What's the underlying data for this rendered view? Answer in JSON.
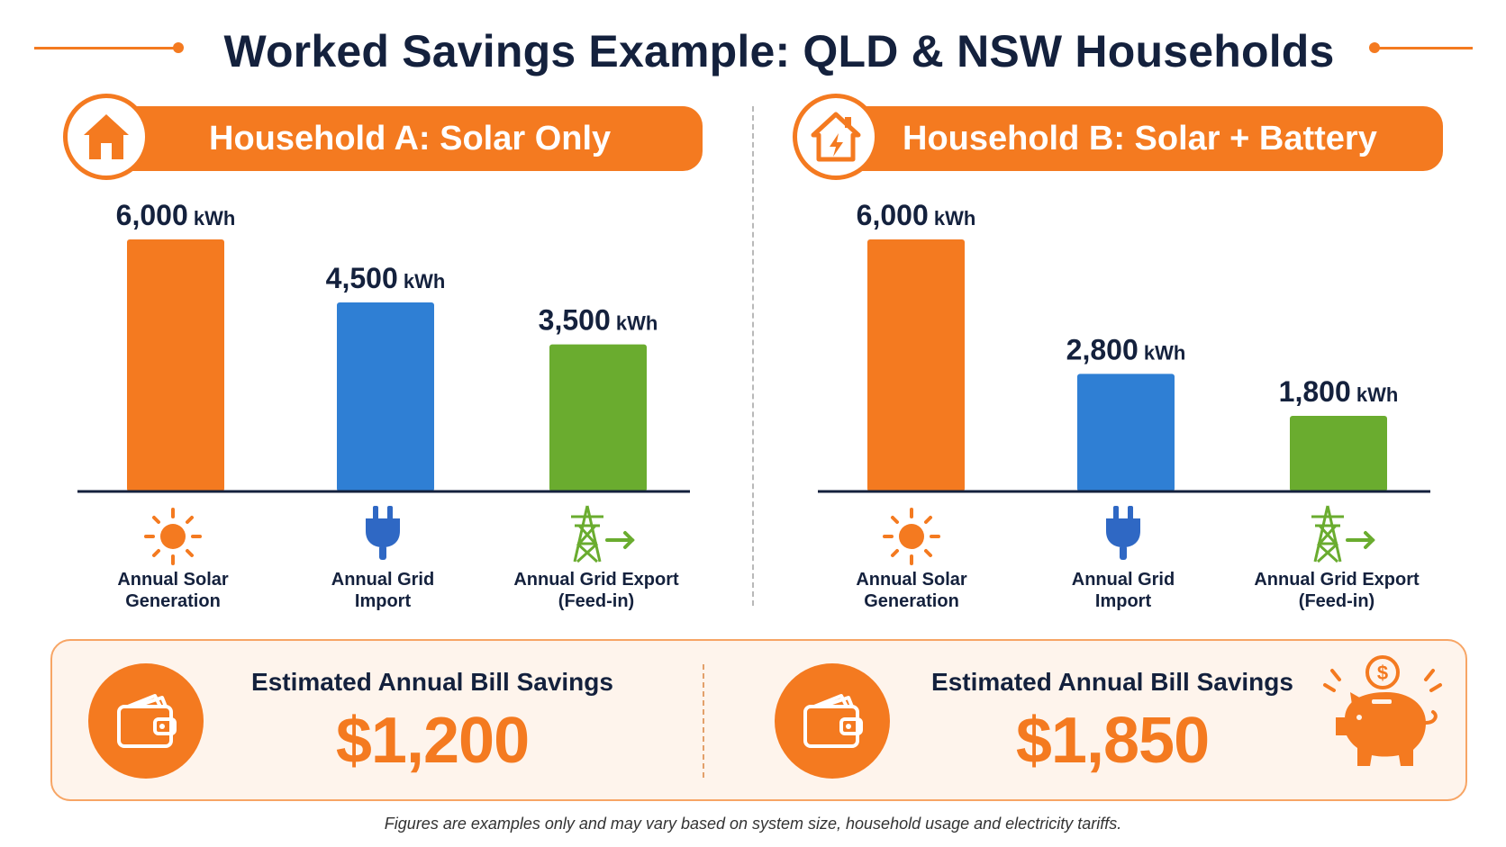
{
  "title": "Worked Savings Example: QLD & NSW Households",
  "footnote": "Figures are examples only and may vary based on system size, household usage and electricity tariffs.",
  "colors": {
    "orange": "#f47a20",
    "blue": "#2f7fd4",
    "green": "#6aac2f",
    "navy": "#14213d"
  },
  "households": [
    {
      "name": "Household A: Solar Only",
      "icon": "house-icon"
    },
    {
      "name": "Household B: Solar + Battery",
      "icon": "house-lightning-icon"
    }
  ],
  "categories": [
    {
      "label_line1": "Annual Solar",
      "label_line2": "Generation",
      "icon": "sun-icon"
    },
    {
      "label_line1": "Annual Grid",
      "label_line2": "Import",
      "icon": "plug-icon"
    },
    {
      "label_line1": "Annual Grid Export",
      "label_line2": "(Feed-in)",
      "icon": "pylon-export-icon"
    }
  ],
  "chart_data": [
    {
      "type": "bar",
      "title": "Household A: Solar Only",
      "categories": [
        "Annual Solar Generation",
        "Annual Grid Import",
        "Annual Grid Export (Feed-in)"
      ],
      "values": [
        6000,
        4500,
        3500
      ],
      "value_labels": [
        "6,000",
        "4,500",
        "3,500"
      ],
      "unit": "kWh",
      "bar_colors": [
        "#f47a20",
        "#2f7fd4",
        "#6aac2f"
      ],
      "ylim": [
        0,
        6000
      ],
      "grid": false
    },
    {
      "type": "bar",
      "title": "Household B: Solar + Battery",
      "categories": [
        "Annual Solar Generation",
        "Annual Grid Import",
        "Annual Grid Export (Feed-in)"
      ],
      "values": [
        6000,
        2800,
        1800
      ],
      "value_labels": [
        "6,000",
        "2,800",
        "1,800"
      ],
      "unit": "kWh",
      "bar_colors": [
        "#f47a20",
        "#2f7fd4",
        "#6aac2f"
      ],
      "ylim": [
        0,
        6000
      ],
      "grid": false
    }
  ],
  "savings": [
    {
      "label": "Estimated Annual Bill Savings",
      "value": "$1,200",
      "icon": "wallet-icon"
    },
    {
      "label": "Estimated Annual Bill Savings",
      "value": "$1,850",
      "icon": "wallet-icon"
    }
  ],
  "extra_icons": {
    "piggy": "piggy-bank-icon"
  }
}
